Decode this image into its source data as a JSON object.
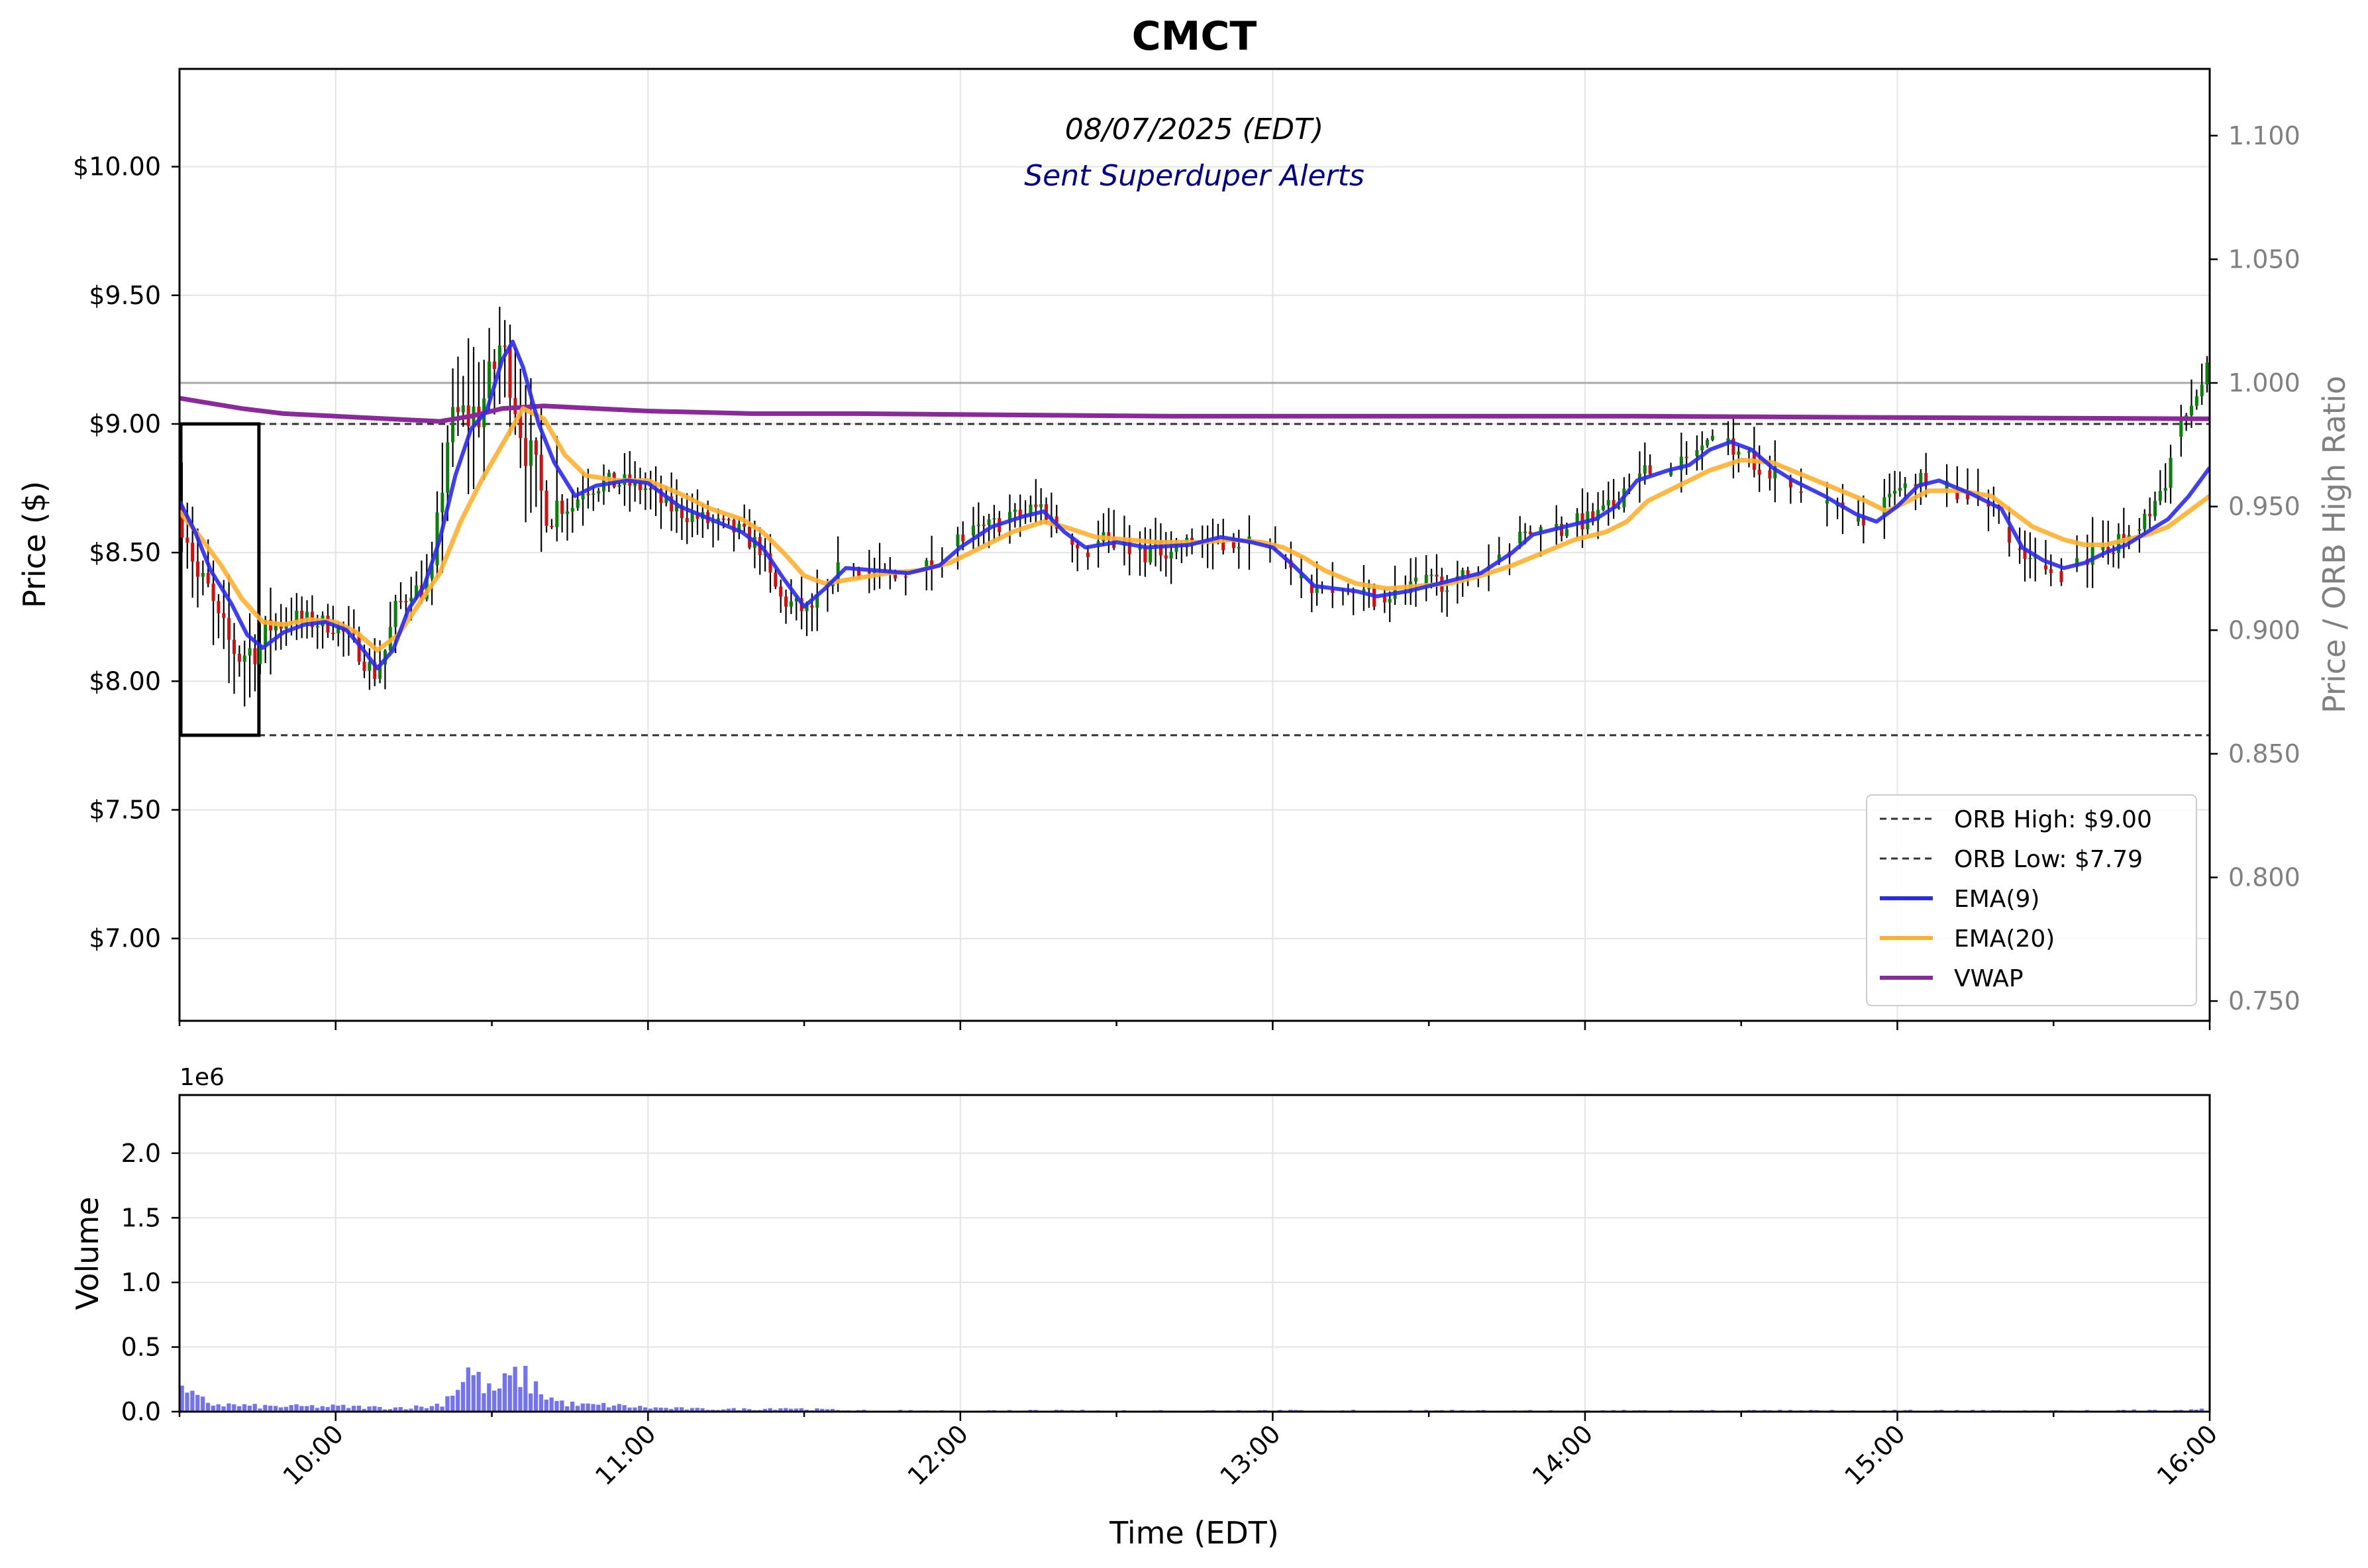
{
  "chart_data": {
    "type": "candlestick",
    "title": "CMCT",
    "subtitle": "08/07/2025 (EDT)",
    "annotation": "Sent Superduper Alerts",
    "ylabel": "Price ($)",
    "ylabel_right": "Price / ORB High Ratio",
    "xlabel": "Time (EDT)",
    "volume_ylabel": "Volume",
    "volume_multiplier": "1e6",
    "price_ylim": [
      6.68,
      10.38
    ],
    "ratio_ylim": [
      0.742,
      1.127
    ],
    "volume_ylim": [
      0,
      2.45
    ],
    "x_range_minutes": [
      570,
      960
    ],
    "price_ticks": [
      {
        "value": 10.0,
        "label": "$10.00"
      },
      {
        "value": 9.5,
        "label": "$9.50"
      },
      {
        "value": 9.0,
        "label": "$9.00"
      },
      {
        "value": 8.5,
        "label": "$8.50"
      },
      {
        "value": 8.0,
        "label": "$8.00"
      },
      {
        "value": 7.5,
        "label": "$7.50"
      },
      {
        "value": 7.0,
        "label": "$7.00"
      }
    ],
    "ratio_ticks": [
      {
        "value": 1.1,
        "label": "1.100"
      },
      {
        "value": 1.05,
        "label": "1.050"
      },
      {
        "value": 1.0,
        "label": "1.000"
      },
      {
        "value": 0.95,
        "label": "0.950"
      },
      {
        "value": 0.9,
        "label": "0.900"
      },
      {
        "value": 0.85,
        "label": "0.850"
      },
      {
        "value": 0.8,
        "label": "0.800"
      },
      {
        "value": 0.75,
        "label": "0.750"
      }
    ],
    "volume_ticks": [
      {
        "value": 2.0,
        "label": "2.0"
      },
      {
        "value": 1.5,
        "label": "1.5"
      },
      {
        "value": 1.0,
        "label": "1.0"
      },
      {
        "value": 0.5,
        "label": "0.5"
      },
      {
        "value": 0.0,
        "label": "0.0"
      }
    ],
    "time_ticks": [
      {
        "minute": 600,
        "label": "10:00"
      },
      {
        "minute": 660,
        "label": "11:00"
      },
      {
        "minute": 720,
        "label": "12:00"
      },
      {
        "minute": 780,
        "label": "13:00"
      },
      {
        "minute": 840,
        "label": "14:00"
      },
      {
        "minute": 900,
        "label": "15:00"
      },
      {
        "minute": 960,
        "label": "16:00"
      }
    ],
    "orb": {
      "high": 9.0,
      "low": 7.79,
      "start_minute": 570,
      "end_minute": 585
    },
    "ratio_reference": 1.0,
    "legend": [
      {
        "label": "ORB High: $9.00",
        "style": "dashed",
        "color": "#333333"
      },
      {
        "label": "ORB Low: $7.79",
        "style": "dashed",
        "color": "#333333"
      },
      {
        "label": "EMA(9)",
        "style": "solid",
        "color": "#2a2af0"
      },
      {
        "label": "EMA(20)",
        "style": "solid",
        "color": "#ffb030"
      },
      {
        "label": "VWAP",
        "style": "solid",
        "color": "#8a2a9a"
      }
    ],
    "colors": {
      "up": "#0a800a",
      "down": "#d01010",
      "wick": "#000000",
      "ema9": "#2a2af0",
      "ema20": "#ffb030",
      "vwap": "#8a2a9a",
      "volume": "#5a5af0",
      "annotation": "#00008b",
      "ratio_axis": "#808080"
    },
    "price_anchors": [
      [
        570,
        8.68
      ],
      [
        572,
        8.58
      ],
      [
        574,
        8.4
      ],
      [
        576,
        8.35
      ],
      [
        578,
        8.22
      ],
      [
        580,
        8.15
      ],
      [
        582,
        8.1
      ],
      [
        584,
        8.12
      ],
      [
        586,
        8.14
      ],
      [
        588,
        8.22
      ],
      [
        592,
        8.25
      ],
      [
        596,
        8.23
      ],
      [
        600,
        8.22
      ],
      [
        604,
        8.15
      ],
      [
        606,
        8.08
      ],
      [
        608,
        8.03
      ],
      [
        610,
        8.12
      ],
      [
        612,
        8.28
      ],
      [
        615,
        8.36
      ],
      [
        617,
        8.35
      ],
      [
        619,
        8.42
      ],
      [
        620,
        8.62
      ],
      [
        622,
        8.95
      ],
      [
        624,
        9.02
      ],
      [
        626,
        9.03
      ],
      [
        628,
        9.05
      ],
      [
        630,
        9.15
      ],
      [
        632,
        9.3
      ],
      [
        634,
        9.2
      ],
      [
        636,
        9.0
      ],
      [
        638,
        8.85
      ],
      [
        640,
        8.72
      ],
      [
        642,
        8.68
      ],
      [
        646,
        8.68
      ],
      [
        648,
        8.75
      ],
      [
        652,
        8.77
      ],
      [
        656,
        8.77
      ],
      [
        660,
        8.75
      ],
      [
        664,
        8.68
      ],
      [
        668,
        8.65
      ],
      [
        672,
        8.62
      ],
      [
        678,
        8.58
      ],
      [
        682,
        8.52
      ],
      [
        684,
        8.4
      ],
      [
        686,
        8.32
      ],
      [
        688,
        8.3
      ],
      [
        692,
        8.26
      ],
      [
        694,
        8.38
      ],
      [
        698,
        8.45
      ],
      [
        700,
        8.43
      ],
      [
        704,
        8.42
      ],
      [
        708,
        8.4
      ],
      [
        712,
        8.43
      ],
      [
        716,
        8.45
      ],
      [
        720,
        8.55
      ],
      [
        726,
        8.6
      ],
      [
        732,
        8.65
      ],
      [
        736,
        8.68
      ],
      [
        740,
        8.58
      ],
      [
        744,
        8.5
      ],
      [
        748,
        8.55
      ],
      [
        752,
        8.52
      ],
      [
        756,
        8.5
      ],
      [
        764,
        8.53
      ],
      [
        770,
        8.55
      ],
      [
        776,
        8.53
      ],
      [
        780,
        8.52
      ],
      [
        782,
        8.48
      ],
      [
        784,
        8.42
      ],
      [
        786,
        8.38
      ],
      [
        790,
        8.36
      ],
      [
        796,
        8.35
      ],
      [
        800,
        8.33
      ],
      [
        806,
        8.35
      ],
      [
        810,
        8.38
      ],
      [
        818,
        8.4
      ],
      [
        820,
        8.42
      ],
      [
        826,
        8.52
      ],
      [
        830,
        8.58
      ],
      [
        836,
        8.6
      ],
      [
        840,
        8.62
      ],
      [
        842,
        8.63
      ],
      [
        846,
        8.68
      ],
      [
        848,
        8.75
      ],
      [
        852,
        8.82
      ],
      [
        856,
        8.8
      ],
      [
        858,
        8.82
      ],
      [
        860,
        8.85
      ],
      [
        862,
        8.9
      ],
      [
        866,
        8.92
      ],
      [
        868,
        8.93
      ],
      [
        872,
        8.88
      ],
      [
        876,
        8.8
      ],
      [
        878,
        8.82
      ],
      [
        880,
        8.75
      ],
      [
        884,
        8.7
      ],
      [
        888,
        8.68
      ],
      [
        892,
        8.62
      ],
      [
        896,
        8.6
      ],
      [
        898,
        8.68
      ],
      [
        900,
        8.72
      ],
      [
        904,
        8.78
      ],
      [
        906,
        8.8
      ],
      [
        908,
        8.75
      ],
      [
        912,
        8.73
      ],
      [
        916,
        8.72
      ],
      [
        920,
        8.65
      ],
      [
        922,
        8.55
      ],
      [
        924,
        8.48
      ],
      [
        928,
        8.45
      ],
      [
        932,
        8.42
      ],
      [
        934,
        8.45
      ],
      [
        938,
        8.5
      ],
      [
        940,
        8.52
      ],
      [
        944,
        8.55
      ],
      [
        948,
        8.62
      ],
      [
        950,
        8.7
      ],
      [
        952,
        8.78
      ],
      [
        954,
        8.95
      ],
      [
        960,
        9.2
      ]
    ],
    "ema9_points": [
      [
        570,
        8.7
      ],
      [
        573,
        8.58
      ],
      [
        576,
        8.43
      ],
      [
        580,
        8.3
      ],
      [
        583,
        8.18
      ],
      [
        586,
        8.13
      ],
      [
        590,
        8.19
      ],
      [
        594,
        8.22
      ],
      [
        598,
        8.23
      ],
      [
        602,
        8.2
      ],
      [
        605,
        8.13
      ],
      [
        608,
        8.05
      ],
      [
        611,
        8.12
      ],
      [
        614,
        8.28
      ],
      [
        617,
        8.37
      ],
      [
        620,
        8.55
      ],
      [
        623,
        8.8
      ],
      [
        626,
        8.98
      ],
      [
        629,
        9.05
      ],
      [
        632,
        9.25
      ],
      [
        634,
        9.32
      ],
      [
        636,
        9.22
      ],
      [
        639,
        9.0
      ],
      [
        642,
        8.85
      ],
      [
        646,
        8.72
      ],
      [
        650,
        8.76
      ],
      [
        656,
        8.78
      ],
      [
        660,
        8.77
      ],
      [
        666,
        8.68
      ],
      [
        672,
        8.63
      ],
      [
        678,
        8.58
      ],
      [
        682,
        8.52
      ],
      [
        686,
        8.4
      ],
      [
        690,
        8.29
      ],
      [
        694,
        8.36
      ],
      [
        698,
        8.44
      ],
      [
        704,
        8.43
      ],
      [
        710,
        8.42
      ],
      [
        716,
        8.45
      ],
      [
        720,
        8.52
      ],
      [
        726,
        8.6
      ],
      [
        732,
        8.64
      ],
      [
        736,
        8.66
      ],
      [
        740,
        8.58
      ],
      [
        744,
        8.52
      ],
      [
        750,
        8.54
      ],
      [
        756,
        8.52
      ],
      [
        764,
        8.53
      ],
      [
        770,
        8.56
      ],
      [
        776,
        8.54
      ],
      [
        780,
        8.52
      ],
      [
        784,
        8.45
      ],
      [
        788,
        8.37
      ],
      [
        792,
        8.36
      ],
      [
        796,
        8.35
      ],
      [
        800,
        8.33
      ],
      [
        806,
        8.35
      ],
      [
        812,
        8.38
      ],
      [
        820,
        8.42
      ],
      [
        826,
        8.5
      ],
      [
        830,
        8.57
      ],
      [
        836,
        8.6
      ],
      [
        842,
        8.63
      ],
      [
        846,
        8.68
      ],
      [
        850,
        8.78
      ],
      [
        856,
        8.82
      ],
      [
        860,
        8.84
      ],
      [
        864,
        8.9
      ],
      [
        868,
        8.93
      ],
      [
        872,
        8.9
      ],
      [
        876,
        8.83
      ],
      [
        880,
        8.78
      ],
      [
        886,
        8.72
      ],
      [
        892,
        8.65
      ],
      [
        896,
        8.62
      ],
      [
        900,
        8.68
      ],
      [
        904,
        8.76
      ],
      [
        908,
        8.78
      ],
      [
        914,
        8.73
      ],
      [
        920,
        8.67
      ],
      [
        924,
        8.52
      ],
      [
        928,
        8.47
      ],
      [
        932,
        8.44
      ],
      [
        936,
        8.46
      ],
      [
        940,
        8.5
      ],
      [
        944,
        8.53
      ],
      [
        948,
        8.58
      ],
      [
        952,
        8.63
      ],
      [
        956,
        8.72
      ],
      [
        960,
        8.83
      ]
    ],
    "ema20_points": [
      [
        570,
        8.66
      ],
      [
        574,
        8.56
      ],
      [
        578,
        8.45
      ],
      [
        582,
        8.32
      ],
      [
        586,
        8.23
      ],
      [
        590,
        8.22
      ],
      [
        595,
        8.24
      ],
      [
        600,
        8.23
      ],
      [
        604,
        8.19
      ],
      [
        608,
        8.12
      ],
      [
        612,
        8.18
      ],
      [
        616,
        8.3
      ],
      [
        620,
        8.42
      ],
      [
        624,
        8.62
      ],
      [
        628,
        8.78
      ],
      [
        632,
        8.92
      ],
      [
        636,
        9.06
      ],
      [
        640,
        9.02
      ],
      [
        644,
        8.88
      ],
      [
        648,
        8.8
      ],
      [
        654,
        8.78
      ],
      [
        660,
        8.78
      ],
      [
        666,
        8.73
      ],
      [
        672,
        8.67
      ],
      [
        678,
        8.63
      ],
      [
        682,
        8.58
      ],
      [
        686,
        8.5
      ],
      [
        690,
        8.41
      ],
      [
        694,
        8.38
      ],
      [
        700,
        8.4
      ],
      [
        706,
        8.42
      ],
      [
        712,
        8.43
      ],
      [
        718,
        8.46
      ],
      [
        724,
        8.52
      ],
      [
        730,
        8.58
      ],
      [
        736,
        8.62
      ],
      [
        740,
        8.6
      ],
      [
        746,
        8.56
      ],
      [
        752,
        8.55
      ],
      [
        758,
        8.54
      ],
      [
        766,
        8.54
      ],
      [
        772,
        8.55
      ],
      [
        778,
        8.54
      ],
      [
        782,
        8.52
      ],
      [
        786,
        8.48
      ],
      [
        790,
        8.43
      ],
      [
        796,
        8.38
      ],
      [
        802,
        8.36
      ],
      [
        808,
        8.37
      ],
      [
        814,
        8.38
      ],
      [
        820,
        8.41
      ],
      [
        826,
        8.45
      ],
      [
        832,
        8.5
      ],
      [
        838,
        8.55
      ],
      [
        844,
        8.58
      ],
      [
        848,
        8.62
      ],
      [
        852,
        8.7
      ],
      [
        858,
        8.76
      ],
      [
        864,
        8.82
      ],
      [
        870,
        8.86
      ],
      [
        876,
        8.85
      ],
      [
        882,
        8.8
      ],
      [
        888,
        8.75
      ],
      [
        894,
        8.7
      ],
      [
        898,
        8.66
      ],
      [
        902,
        8.7
      ],
      [
        906,
        8.74
      ],
      [
        912,
        8.74
      ],
      [
        918,
        8.72
      ],
      [
        922,
        8.66
      ],
      [
        926,
        8.6
      ],
      [
        932,
        8.55
      ],
      [
        936,
        8.53
      ],
      [
        940,
        8.53
      ],
      [
        944,
        8.55
      ],
      [
        948,
        8.57
      ],
      [
        952,
        8.6
      ],
      [
        956,
        8.66
      ],
      [
        960,
        8.72
      ]
    ],
    "vwap_points": [
      [
        570,
        9.1
      ],
      [
        576,
        9.08
      ],
      [
        582,
        9.06
      ],
      [
        590,
        9.04
      ],
      [
        600,
        9.03
      ],
      [
        610,
        9.02
      ],
      [
        620,
        9.01
      ],
      [
        626,
        9.03
      ],
      [
        632,
        9.06
      ],
      [
        640,
        9.07
      ],
      [
        650,
        9.06
      ],
      [
        660,
        9.05
      ],
      [
        680,
        9.04
      ],
      [
        700,
        9.04
      ],
      [
        730,
        9.035
      ],
      [
        760,
        9.03
      ],
      [
        800,
        9.03
      ],
      [
        850,
        9.03
      ],
      [
        900,
        9.025
      ],
      [
        960,
        9.02
      ]
    ],
    "volume_anchors": [
      [
        570,
        0.15
      ],
      [
        573,
        0.1
      ],
      [
        576,
        0.06
      ],
      [
        580,
        0.05
      ],
      [
        585,
        0.04
      ],
      [
        590,
        0.04
      ],
      [
        600,
        0.04
      ],
      [
        610,
        0.03
      ],
      [
        618,
        0.04
      ],
      [
        620,
        0.07
      ],
      [
        623,
        0.2
      ],
      [
        625,
        0.32
      ],
      [
        627,
        0.24
      ],
      [
        629,
        0.16
      ],
      [
        631,
        0.18
      ],
      [
        633,
        0.25
      ],
      [
        635,
        0.28
      ],
      [
        637,
        0.22
      ],
      [
        639,
        0.15
      ],
      [
        642,
        0.08
      ],
      [
        646,
        0.05
      ],
      [
        652,
        0.05
      ],
      [
        660,
        0.03
      ],
      [
        670,
        0.02
      ],
      [
        680,
        0.02
      ],
      [
        686,
        0.03
      ],
      [
        690,
        0.02
      ],
      [
        700,
        0.01
      ],
      [
        760,
        0.01
      ],
      [
        800,
        0.01
      ],
      [
        860,
        0.01
      ],
      [
        900,
        0.01
      ],
      [
        940,
        0.01
      ],
      [
        958,
        0.02
      ],
      [
        960,
        0.06
      ]
    ]
  }
}
